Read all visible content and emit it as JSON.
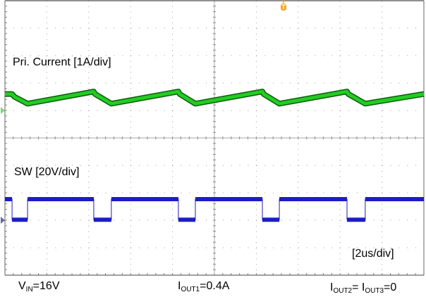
{
  "chart_data": {
    "type": "line",
    "title": "",
    "x_unit": "us",
    "xlim": [
      0,
      20
    ],
    "x_per_div": 2,
    "grid": true,
    "grid_divisions": {
      "x": 10,
      "y": 10
    },
    "colors": {
      "current": "#22cc22",
      "current_edge": "#0b5d0b",
      "sw": "#1d1dc4",
      "trigger": "#f5a623",
      "grid": "#999999"
    },
    "series": [
      {
        "name": "Pri. Current [1A/div]",
        "unit": "A",
        "per_div": 1,
        "t": [
          0,
          0.34,
          0.45,
          1.08,
          4.24,
          4.3,
          5.08,
          8.28,
          8.34,
          9.09,
          12.29,
          12.35,
          13.1,
          16.33,
          16.39,
          17.2,
          20
        ],
        "values": [
          0.6,
          0.6,
          0.5,
          0.25,
          0.69,
          0.6,
          0.25,
          0.69,
          0.6,
          0.25,
          0.69,
          0.6,
          0.25,
          0.69,
          0.6,
          0.25,
          0.6
        ]
      },
      {
        "name": "SW [20V/div]",
        "unit": "V",
        "per_div": 20,
        "high_V": 15.4,
        "low_V": 0.4,
        "low_intervals_us": [
          [
            0.34,
            1.08
          ],
          [
            4.24,
            5.08
          ],
          [
            8.28,
            9.09
          ],
          [
            12.29,
            13.1
          ],
          [
            16.33,
            17.2
          ]
        ]
      }
    ],
    "trigger_time_us": 13.3,
    "annotations": {
      "timebase": "[2us/div]",
      "vin": {
        "main": "V",
        "sub": "IN",
        "rest": "=16V"
      },
      "iout1": {
        "main": "I",
        "sub": "OUT1",
        "rest": "=0.4A"
      },
      "iout23": {
        "main1": "I",
        "sub1": "OUT2",
        "mid": "= I",
        "sub2": "OUT3",
        "rest": "=0"
      }
    }
  }
}
